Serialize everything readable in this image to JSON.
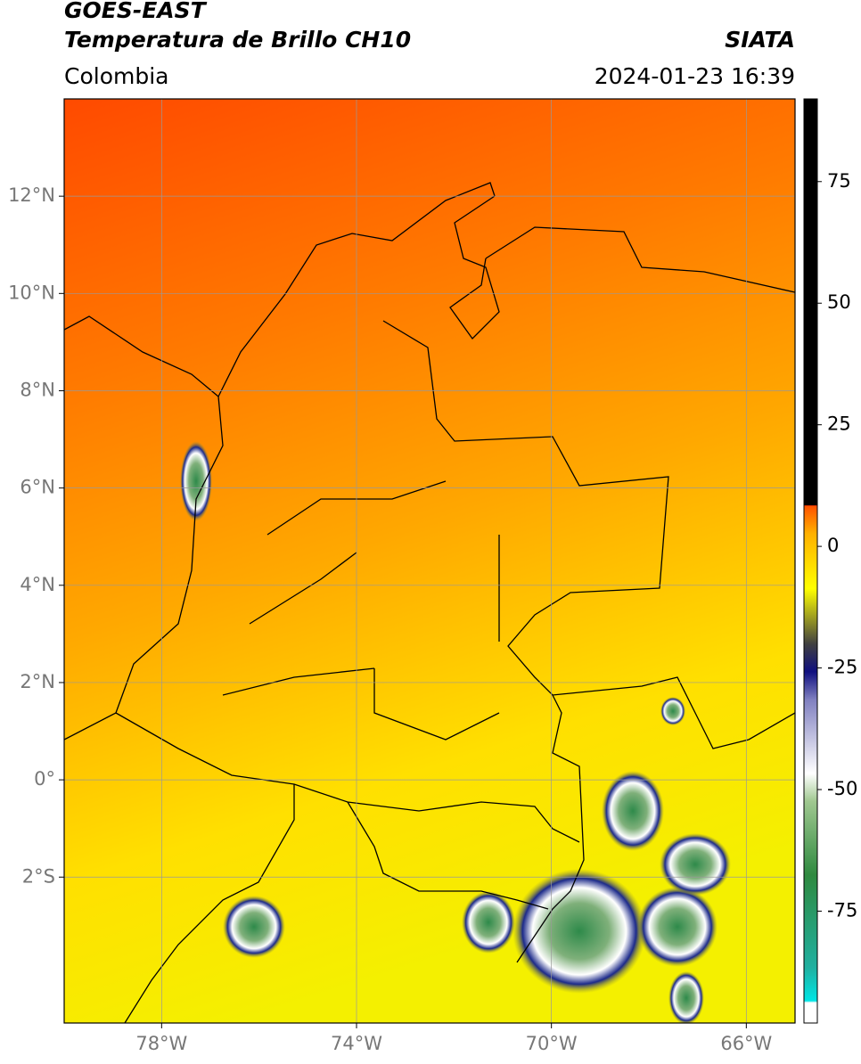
{
  "map": {
    "title": "GOES-EAST",
    "subtitle": "Temperatura de Brillo CH10",
    "region": "Colombia",
    "source": "SIATA",
    "timestamp": "2024-01-23 16:39",
    "xlim": [
      -80,
      -65
    ],
    "ylim": [
      -5,
      14
    ],
    "xticks": [
      {
        "value": -78,
        "label": "78°W"
      },
      {
        "value": -74,
        "label": "74°W"
      },
      {
        "value": -70,
        "label": "70°W"
      },
      {
        "value": -66,
        "label": "66°W"
      }
    ],
    "yticks": [
      {
        "value": 12,
        "label": "12°N"
      },
      {
        "value": 10,
        "label": "10°N"
      },
      {
        "value": 8,
        "label": "8°N"
      },
      {
        "value": 6,
        "label": "6°N"
      },
      {
        "value": 4,
        "label": "4°N"
      },
      {
        "value": 2,
        "label": "2°N"
      },
      {
        "value": 0,
        "label": "0°"
      },
      {
        "value": -2,
        "label": "2°S"
      }
    ],
    "grid": true,
    "colorbar": {
      "lim": [
        -98,
        92
      ],
      "ticks": [
        75,
        50,
        25,
        0,
        -25,
        -50,
        -75
      ]
    }
  }
}
